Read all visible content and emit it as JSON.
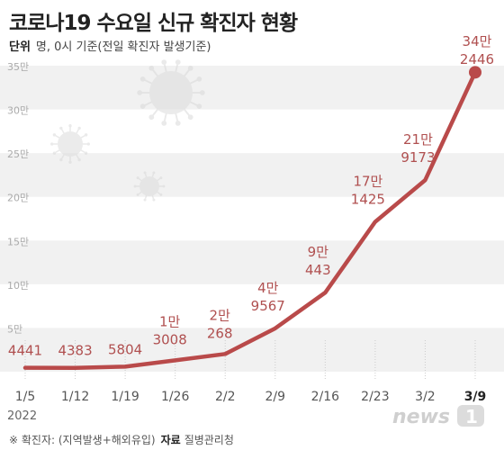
{
  "header": {
    "title": "코로나19 수요일 신규 확진자 현황",
    "unit_label": "단위",
    "unit_text": "명, 0시 기준(전일 확진자 발생기준)"
  },
  "footer": {
    "note": "※ 확진자: (지역발생+해외유입)",
    "source_label": "자료",
    "source": "질병관리청"
  },
  "brand": {
    "logo_text": "news1"
  },
  "colors": {
    "line": "#b94a4a",
    "label": "#b05050",
    "band": "#f1f1f1",
    "tick": "#cccccc",
    "axis_text": "#555555"
  },
  "chart_data": {
    "type": "line",
    "title": "코로나19 수요일 신규 확진자 현황",
    "xlabel": "",
    "ylabel": "",
    "year_label": "2022",
    "ylim": [
      0,
      350000
    ],
    "y_ticks": [
      "5만",
      "10만",
      "15만",
      "20만",
      "25만",
      "30만",
      "35만"
    ],
    "y_tick_values": [
      50000,
      100000,
      150000,
      200000,
      250000,
      300000,
      350000
    ],
    "categories": [
      "1/5",
      "1/12",
      "1/19",
      "1/26",
      "2/2",
      "2/9",
      "2/16",
      "2/23",
      "3/2",
      "3/9"
    ],
    "series": [
      {
        "values": [
          4441,
          4383,
          5804,
          13008,
          20268,
          49567,
          90443,
          171425,
          219173,
          342446
        ],
        "labels": [
          [
            "4441"
          ],
          [
            "4383"
          ],
          [
            "5804"
          ],
          [
            "1만",
            "3008"
          ],
          [
            "2만",
            "268"
          ],
          [
            "4만",
            "9567"
          ],
          [
            "9만",
            "443"
          ],
          [
            "17만",
            "1425"
          ],
          [
            "21만",
            "9173"
          ],
          [
            "34만",
            "2446"
          ]
        ]
      }
    ],
    "grid": "alternating bands",
    "highlight_category": "3/9"
  }
}
